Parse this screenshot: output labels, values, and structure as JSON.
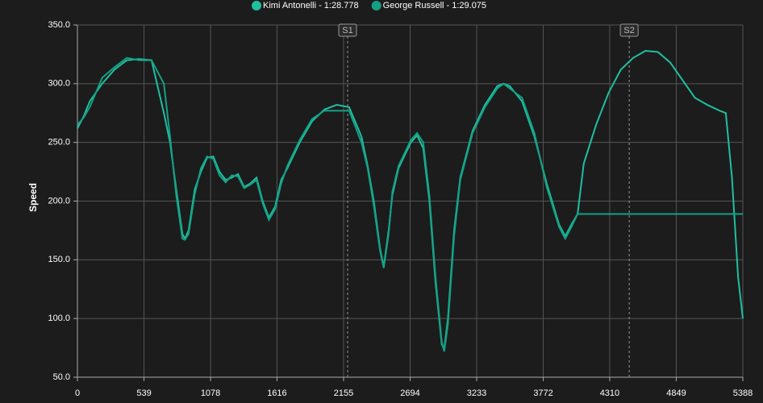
{
  "chart_data": {
    "type": "line",
    "y_label": "Speed",
    "x": [
      0,
      50,
      100,
      200,
      300,
      400,
      500,
      600,
      700,
      750,
      800,
      850,
      870,
      900,
      950,
      1000,
      1050,
      1100,
      1150,
      1200,
      1250,
      1300,
      1350,
      1400,
      1450,
      1500,
      1550,
      1600,
      1650,
      1700,
      1800,
      1900,
      2000,
      2100,
      2200,
      2300,
      2350,
      2400,
      2450,
      2480,
      2520,
      2550,
      2600,
      2700,
      2750,
      2800,
      2850,
      2900,
      2950,
      2970,
      3000,
      3050,
      3100,
      3200,
      3300,
      3400,
      3450,
      3500,
      3600,
      3700,
      3800,
      3900,
      3950,
      4000,
      4050,
      4100,
      4200,
      4300,
      4400,
      4500,
      4600,
      4700,
      4800,
      4900,
      5000,
      5100,
      5200,
      5250,
      5300,
      5350,
      5388
    ],
    "series": [
      {
        "name": "Kimi Antonelli - 1:28.778",
        "color": "#1fbfa0",
        "values": [
          262,
          272,
          285,
          300,
          312,
          320,
          321,
          320,
          275,
          250,
          210,
          172,
          168,
          175,
          210,
          225,
          237,
          238,
          225,
          218,
          220,
          223,
          212,
          215,
          220,
          200,
          186,
          195,
          218,
          228,
          250,
          268,
          278,
          282,
          280,
          255,
          230,
          200,
          160,
          144,
          175,
          205,
          228,
          250,
          256,
          245,
          200,
          130,
          78,
          74,
          100,
          175,
          220,
          260,
          282,
          298,
          300,
          298,
          285,
          255,
          215,
          180,
          170,
          180,
          189,
          232,
          265,
          292,
          312,
          322,
          328,
          327,
          318,
          303,
          288,
          282,
          277,
          275,
          220,
          135,
          100
        ]
      },
      {
        "name": "George Russell - 1:29.075",
        "color": "#15a085",
        "values": [
          265,
          271,
          280,
          305,
          314,
          322,
          320,
          320,
          300,
          255,
          205,
          168,
          167,
          172,
          206,
          228,
          238,
          236,
          222,
          216,
          222,
          221,
          211,
          214,
          218,
          198,
          184,
          193,
          215,
          230,
          252,
          270,
          277,
          277,
          277,
          250,
          228,
          196,
          158,
          143,
          172,
          208,
          230,
          252,
          258,
          250,
          205,
          135,
          80,
          72,
          95,
          170,
          218,
          258,
          280,
          296,
          300,
          296,
          288,
          258,
          212,
          178,
          168,
          178,
          189,
          189,
          189,
          189,
          189,
          189,
          189,
          189,
          189,
          189,
          189,
          189,
          189,
          189,
          189,
          189,
          189
        ]
      }
    ],
    "xlim": [
      0,
      5388
    ],
    "xticks": [
      0,
      539,
      1078,
      1616,
      2155,
      2694,
      3233,
      3772,
      4310,
      4849,
      5388
    ],
    "ylim": [
      50,
      350
    ],
    "yticks": [
      {
        "value": 50,
        "label": "50.0"
      },
      {
        "value": 100,
        "label": "100.0"
      },
      {
        "value": 150,
        "label": "150.0"
      },
      {
        "value": 200,
        "label": "200.0"
      },
      {
        "value": 250,
        "label": "250.0"
      },
      {
        "value": 300,
        "label": "300.0"
      },
      {
        "value": 350,
        "label": "350.0"
      }
    ],
    "annotations": [
      {
        "label": "S1",
        "x": 2188
      },
      {
        "label": "S2",
        "x": 4468
      }
    ],
    "grid": true
  }
}
